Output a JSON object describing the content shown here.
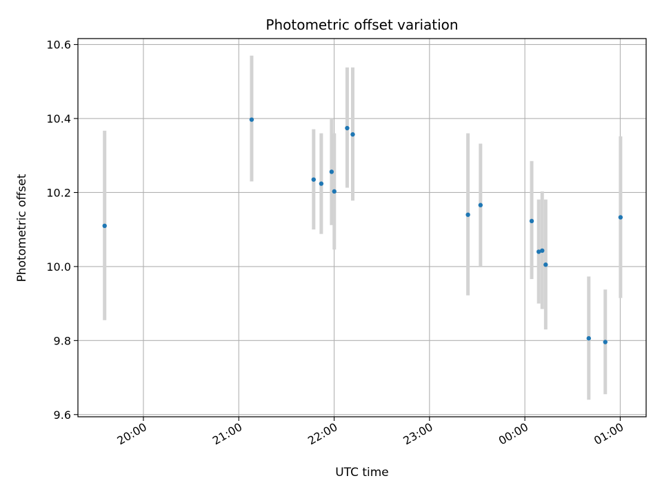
{
  "chart_data": {
    "type": "scatter",
    "title": "Photometric offset variation",
    "xlabel": "UTC time",
    "ylabel": "Photometric offset",
    "x_ticks": [
      "20:00",
      "21:00",
      "22:00",
      "23:00",
      "00:00",
      "01:00"
    ],
    "x_tick_minutes": [
      1200,
      1260,
      1320,
      1380,
      1440,
      1500
    ],
    "y_ticks": [
      "9.6",
      "9.8",
      "10.0",
      "10.2",
      "10.4",
      "10.6"
    ],
    "y_tick_values": [
      9.6,
      9.8,
      10.0,
      10.2,
      10.4,
      10.6
    ],
    "xlim_minutes": [
      1158.8,
      1516.3
    ],
    "ylim": [
      9.594,
      10.616
    ],
    "grid": true,
    "colors": {
      "point": "#1f77b4",
      "errorbar": "#d3d3d3",
      "grid": "#b0b0b0"
    },
    "points": [
      {
        "time": "19:35",
        "minutes": 1175.6,
        "y": 10.11,
        "err_low": 9.855,
        "err_high": 10.367
      },
      {
        "time": "21:08",
        "minutes": 1268.1,
        "y": 10.397,
        "err_low": 10.23,
        "err_high": 10.57
      },
      {
        "time": "21:47",
        "minutes": 1307.1,
        "y": 10.235,
        "err_low": 10.1,
        "err_high": 10.371
      },
      {
        "time": "21:52",
        "minutes": 1311.9,
        "y": 10.224,
        "err_low": 10.088,
        "err_high": 10.36
      },
      {
        "time": "21:58",
        "minutes": 1318.4,
        "y": 10.256,
        "err_low": 10.112,
        "err_high": 10.4
      },
      {
        "time": "22:00",
        "minutes": 1320.1,
        "y": 10.203,
        "err_low": 10.046,
        "err_high": 10.36
      },
      {
        "time": "22:08",
        "minutes": 1328.2,
        "y": 10.374,
        "err_low": 10.213,
        "err_high": 10.538
      },
      {
        "time": "22:11",
        "minutes": 1331.7,
        "y": 10.357,
        "err_low": 10.178,
        "err_high": 10.538
      },
      {
        "time": "23:24",
        "minutes": 1404.2,
        "y": 10.14,
        "err_low": 9.922,
        "err_high": 10.36
      },
      {
        "time": "23:32",
        "minutes": 1412.1,
        "y": 10.166,
        "err_low": 10.0,
        "err_high": 10.332
      },
      {
        "time": "00:04",
        "minutes": 1444.3,
        "y": 10.123,
        "err_low": 9.966,
        "err_high": 10.285
      },
      {
        "time": "00:09",
        "minutes": 1448.7,
        "y": 10.04,
        "err_low": 9.9,
        "err_high": 10.181
      },
      {
        "time": "00:11",
        "minutes": 1450.9,
        "y": 10.043,
        "err_low": 9.885,
        "err_high": 10.203
      },
      {
        "time": "00:13",
        "minutes": 1453.1,
        "y": 10.005,
        "err_low": 9.83,
        "err_high": 10.181
      },
      {
        "time": "00:40",
        "minutes": 1480.2,
        "y": 9.806,
        "err_low": 9.64,
        "err_high": 9.973
      },
      {
        "time": "00:51",
        "minutes": 1490.6,
        "y": 9.796,
        "err_low": 9.655,
        "err_high": 9.938
      },
      {
        "time": "01:00",
        "minutes": 1500.2,
        "y": 10.133,
        "err_low": 9.915,
        "err_high": 10.352
      }
    ]
  }
}
